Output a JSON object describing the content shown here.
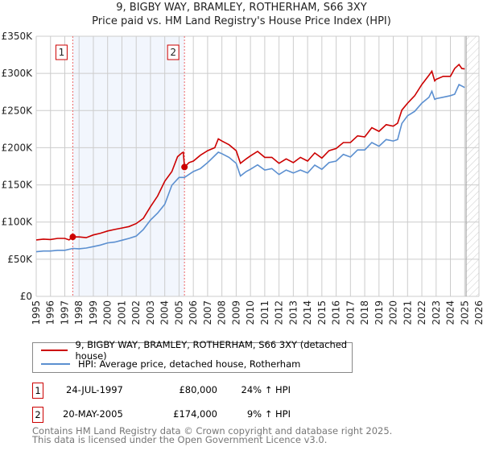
{
  "title_line1": "9, BIGBY WAY, BRAMLEY, ROTHERHAM, S66 3XY",
  "title_line2": "Price paid vs. HM Land Registry's House Price Index (HPI)",
  "chart_data": {
    "type": "line",
    "title": "Price paid vs. HM Land Registry's House Price Index (HPI)",
    "xlim": [
      1995,
      2026
    ],
    "ylim": [
      0,
      350000
    ],
    "yticks": [
      0,
      50000,
      100000,
      150000,
      200000,
      250000,
      300000,
      350000
    ],
    "ytick_labels": [
      "£0",
      "£50K",
      "£100K",
      "£150K",
      "£200K",
      "£250K",
      "£300K",
      "£350K"
    ],
    "xticks": [
      "1995",
      "1996",
      "1997",
      "1998",
      "1999",
      "2000",
      "2001",
      "2002",
      "2003",
      "2004",
      "2005",
      "2006",
      "2007",
      "2008",
      "2009",
      "2010",
      "2011",
      "2012",
      "2013",
      "2014",
      "2015",
      "2016",
      "2017",
      "2018",
      "2019",
      "2020",
      "2021",
      "2022",
      "2023",
      "2024",
      "2025",
      "2026"
    ],
    "grid": true,
    "shaded_ranges": [
      [
        1997.56,
        2005.38
      ]
    ],
    "hatched_from": 2025.1,
    "series": [
      {
        "name": "9, BIGBY WAY, BRAMLEY, ROTHERHAM, S66 3XY (detached house)",
        "color": "#cc0000",
        "x": [
          1995,
          1995.5,
          1996,
          1996.5,
          1997,
          1997.3,
          1997.56,
          1998,
          1998.5,
          1999,
          1999.5,
          2000,
          2000.5,
          2001,
          2001.5,
          2002,
          2002.5,
          2003,
          2003.5,
          2004,
          2004.5,
          2004.9,
          2005.2,
          2005.3,
          2005.38,
          2005.7,
          2006,
          2006.5,
          2007,
          2007.5,
          2007.75,
          2008,
          2008.5,
          2009,
          2009.3,
          2009.7,
          2010,
          2010.5,
          2011,
          2011.5,
          2012,
          2012.5,
          2013,
          2013.5,
          2014,
          2014.5,
          2015,
          2015.5,
          2016,
          2016.5,
          2017,
          2017.5,
          2018,
          2018.5,
          2019,
          2019.5,
          2020,
          2020.3,
          2020.6,
          2021,
          2021.5,
          2022,
          2022.5,
          2022.7,
          2022.9,
          2023,
          2023.5,
          2024,
          2024.3,
          2024.6,
          2024.8,
          2025
        ],
        "y": [
          76000,
          77000,
          76500,
          78000,
          78000,
          76000,
          80000,
          80000,
          79000,
          82700,
          85000,
          88000,
          90000,
          92000,
          94000,
          98000,
          105000,
          120600,
          135000,
          155000,
          168000,
          188000,
          193000,
          194000,
          174000,
          180000,
          182000,
          190000,
          196000,
          200000,
          212000,
          209000,
          204000,
          196000,
          179000,
          185000,
          189000,
          195000,
          187000,
          187000,
          179000,
          185000,
          180000,
          187000,
          182000,
          193000,
          186000,
          196000,
          199000,
          207000,
          207000,
          216000,
          214500,
          227000,
          222000,
          231000,
          229000,
          233000,
          250600,
          260000,
          270000,
          285000,
          297600,
          303000,
          290000,
          292000,
          296000,
          296000,
          306600,
          312000,
          306600,
          306000
        ]
      },
      {
        "name": "HPI: Average price, detached house, Rotherham",
        "color": "#5b8fd0",
        "x": [
          1995,
          1995.5,
          1996,
          1996.5,
          1997,
          1997.56,
          1998,
          1998.5,
          1999,
          1999.5,
          2000,
          2000.5,
          2001,
          2001.5,
          2002,
          2002.5,
          2003,
          2003.5,
          2004,
          2004.5,
          2005,
          2005.38,
          2006,
          2006.5,
          2007,
          2007.75,
          2008,
          2008.5,
          2009,
          2009.3,
          2009.7,
          2010,
          2010.5,
          2011,
          2011.5,
          2012,
          2012.5,
          2013,
          2013.5,
          2014,
          2014.5,
          2015,
          2015.5,
          2016,
          2016.5,
          2017,
          2017.5,
          2018,
          2018.5,
          2019,
          2019.5,
          2020,
          2020.3,
          2020.6,
          2021,
          2021.5,
          2022,
          2022.5,
          2022.7,
          2022.9,
          2023,
          2023.5,
          2024,
          2024.3,
          2024.6,
          2025
        ],
        "y": [
          60000,
          61000,
          61000,
          62000,
          62000,
          64500,
          64000,
          65000,
          67000,
          69000,
          72000,
          73000,
          75500,
          78000,
          81000,
          90000,
          102600,
          112000,
          124000,
          149500,
          160000,
          160000,
          168000,
          172000,
          180000,
          194000,
          192000,
          187000,
          179000,
          162000,
          168000,
          171000,
          177000,
          170000,
          172000,
          164000,
          170000,
          166000,
          170000,
          166000,
          176600,
          171000,
          180000,
          182000,
          191000,
          187500,
          197000,
          197000,
          207000,
          202000,
          211000,
          209000,
          211000,
          232600,
          243000,
          249000,
          260000,
          268000,
          276000,
          265000,
          266000,
          268000,
          270000,
          272000,
          285000,
          281000
        ]
      }
    ],
    "sales": [
      {
        "label": "1",
        "x": 1997.56,
        "y": 80000
      },
      {
        "label": "2",
        "x": 2005.38,
        "y": 174000
      }
    ],
    "legend_position": "below"
  },
  "legend": {
    "property": "9, BIGBY WAY, BRAMLEY, ROTHERHAM, S66 3XY (detached house)",
    "hpi": "HPI: Average price, detached house, Rotherham"
  },
  "transactions": [
    {
      "num": "1",
      "date": "24-JUL-1997",
      "price": "£80,000",
      "hpi": "24% ↑ HPI"
    },
    {
      "num": "2",
      "date": "20-MAY-2005",
      "price": "£174,000",
      "hpi": "9% ↑ HPI"
    }
  ],
  "footer_line1": "Contains HM Land Registry data © Crown copyright and database right 2025.",
  "footer_line2": "This data is licensed under the Open Government Licence v3.0."
}
